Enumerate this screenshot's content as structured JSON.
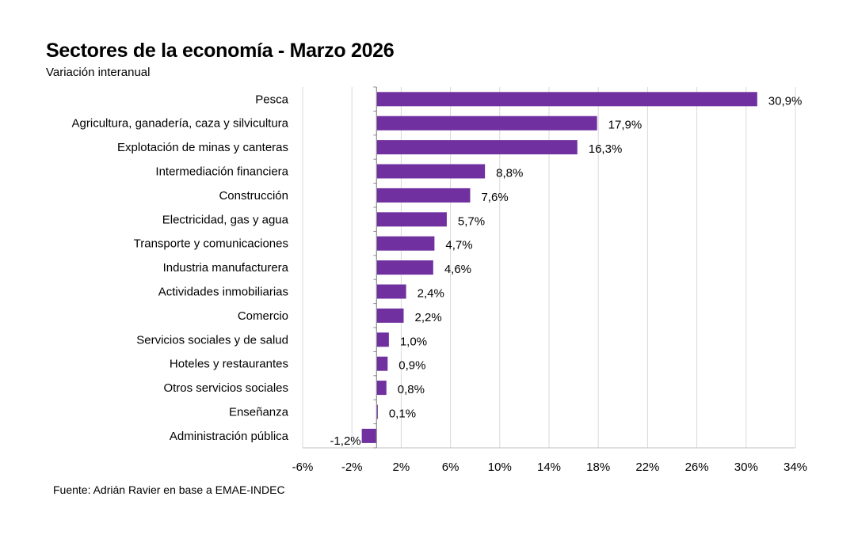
{
  "chart_data": {
    "type": "bar",
    "orientation": "horizontal",
    "title": "Sectores de la economía - Marzo 2026",
    "subtitle": "Variación interanual",
    "source": "Fuente: Adrián Ravier en base a EMAE-INDEC",
    "categories": [
      "Pesca",
      "Agricultura, ganadería, caza y silvicultura",
      "Explotación de minas y canteras",
      "Intermediación financiera",
      "Construcción",
      "Electricidad, gas y agua",
      "Transporte y comunicaciones",
      "Industria manufacturera",
      "Actividades inmobiliarias",
      "Comercio",
      "Servicios sociales y de salud",
      "Hoteles y restaurantes",
      "Otros servicios sociales",
      "Enseñanza",
      "Administración pública"
    ],
    "values": [
      30.9,
      17.9,
      16.3,
      8.8,
      7.6,
      5.7,
      4.7,
      4.6,
      2.4,
      2.2,
      1.0,
      0.9,
      0.8,
      0.1,
      -1.2
    ],
    "value_labels": [
      "30,9%",
      "17,9%",
      "16,3%",
      "8,8%",
      "7,6%",
      "5,7%",
      "4,7%",
      "4,6%",
      "2,4%",
      "2,2%",
      "1,0%",
      "0,9%",
      "0,8%",
      "0,1%",
      "-1,2%"
    ],
    "xlim": [
      -6,
      34
    ],
    "x_ticks": [
      -6,
      -2,
      2,
      6,
      10,
      14,
      18,
      22,
      26,
      30,
      34
    ],
    "x_tick_labels": [
      "-6%",
      "-2%",
      "2%",
      "6%",
      "10%",
      "14%",
      "18%",
      "22%",
      "26%",
      "30%",
      "34%"
    ],
    "grid": "vertical",
    "bar_color": "#7030A0",
    "grid_color": "#d9d9d9"
  }
}
